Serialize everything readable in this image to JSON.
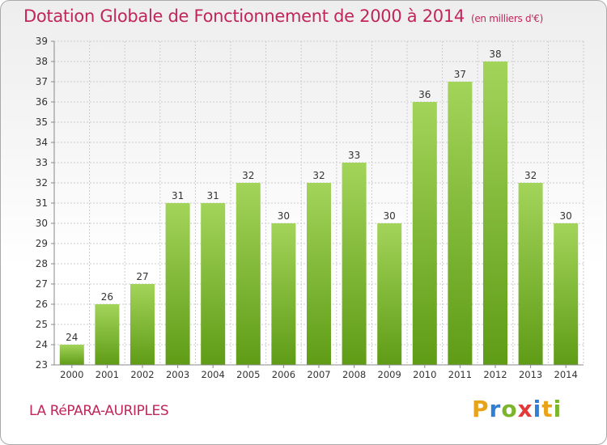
{
  "title": "Dotation Globale de Fonctionnement de 2000 à 2014",
  "unit": "(en milliers d'€)",
  "commune": "LA RéPARA-AURIPLES",
  "logo": {
    "letters": [
      "P",
      "r",
      "o",
      "x",
      "i",
      "t",
      "i"
    ],
    "colors": [
      "#e8a318",
      "#2f7fd4",
      "#7ab52b",
      "#e23a3a",
      "#2f7fd4",
      "#e8a318",
      "#7ab52b"
    ]
  },
  "colors": {
    "title": "#c0265a",
    "bar_top": "#a3d45a",
    "bar_bottom": "#5f9c16",
    "grid": "#cccccc"
  },
  "chart_data": {
    "type": "bar",
    "title": "Dotation Globale de Fonctionnement de 2000 à 2014",
    "categories": [
      "2000",
      "2001",
      "2002",
      "2003",
      "2004",
      "2005",
      "2006",
      "2007",
      "2008",
      "2009",
      "2010",
      "2011",
      "2012",
      "2013",
      "2014"
    ],
    "values": [
      24,
      26,
      27,
      31,
      31,
      32,
      30,
      32,
      33,
      30,
      36,
      37,
      38,
      32,
      30
    ],
    "ylim": [
      23,
      39
    ],
    "yticks": [
      23,
      24,
      25,
      26,
      27,
      28,
      29,
      30,
      31,
      32,
      33,
      34,
      35,
      36,
      37,
      38,
      39
    ],
    "grid": true,
    "data_labels": true
  }
}
